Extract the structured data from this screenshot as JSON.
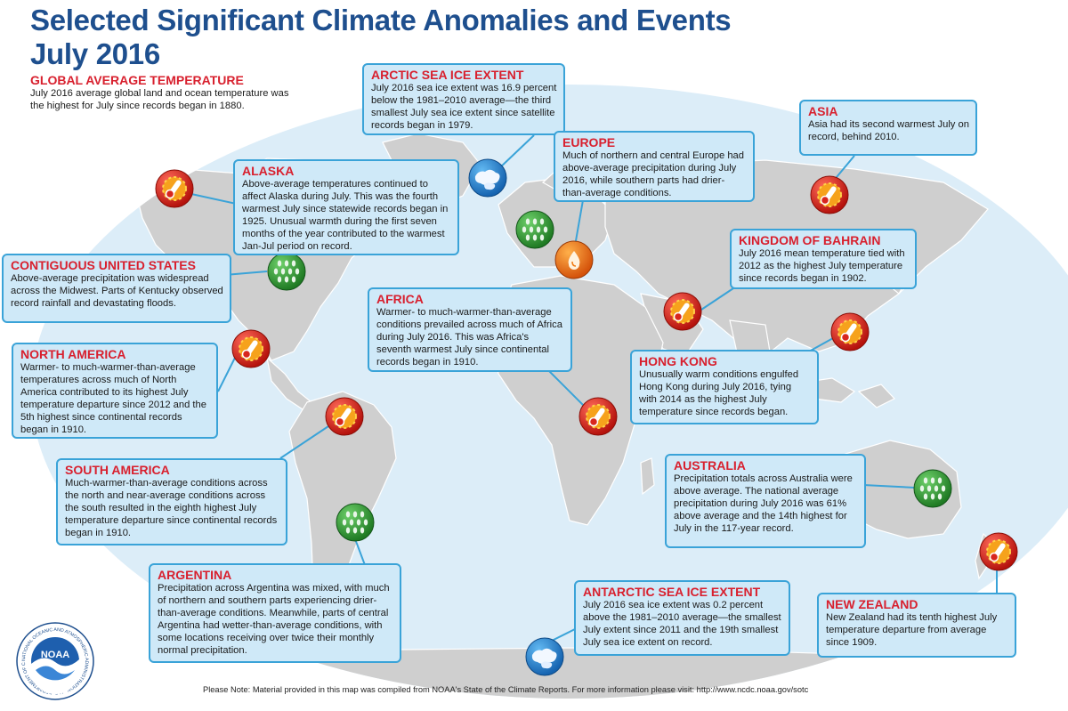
{
  "title": {
    "line1": "Selected Significant Climate Anomalies and Events",
    "line2": "July 2016"
  },
  "global": {
    "heading": "GLOBAL AVERAGE TEMPERATURE",
    "text": "July 2016 average global land and ocean temperature was the highest for July since records began in 1880."
  },
  "events": {
    "arctic": {
      "heading": "ARCTIC SEA ICE EXTENT",
      "text": "July 2016 sea ice extent was 16.9 percent below the 1981–2010 average—the third smallest July sea ice extent since satellite records began in 1979.",
      "icon": "sea-ice-icon"
    },
    "asia": {
      "heading": "ASIA",
      "text": "Asia had its second warmest July on record, behind 2010.",
      "icon": "warm-temperature-icon"
    },
    "alaska": {
      "heading": "ALASKA",
      "text": "Above-average temperatures continued to affect Alaska during July. This was the fourth warmest July since statewide records began in 1925. Unusual warmth during the first seven months of the year contributed to the warmest Jan-Jul period on record.",
      "icon": "warm-temperature-icon"
    },
    "europe": {
      "heading": "EUROPE",
      "text": "Much of northern and central Europe had above-average precipitation during July 2016, while southern parts had drier-than-average conditions.",
      "icon": "precipitation-icon"
    },
    "bahrain": {
      "heading": "KINGDOM OF BAHRAIN",
      "text": "July 2016 mean temperature tied with 2012 as the highest July temperature since records began in 1902.",
      "icon": "warm-temperature-icon"
    },
    "contiguous_us": {
      "heading": "CONTIGUOUS UNITED STATES",
      "text": "Above-average precipitation was widespread across the Midwest. Parts of Kentucky observed record rainfall and devastating floods.",
      "icon": "precipitation-icon"
    },
    "africa": {
      "heading": "AFRICA",
      "text": "Warmer- to much-warmer-than-average conditions prevailed across much of Africa during July 2016. This was Africa's seventh warmest July since continental records began in 1910.",
      "icon": "warm-temperature-icon"
    },
    "north_america": {
      "heading": "NORTH AMERICA",
      "text": "Warmer- to much-warmer-than-average temperatures across much of North America contributed to its highest July temperature departure since 2012 and the 5th highest since continental records began in 1910.",
      "icon": "warm-temperature-icon"
    },
    "hong_kong": {
      "heading": "HONG KONG",
      "text": "Unusually warm conditions engulfed Hong Kong during July 2016, tying with 2014 as the highest July temperature since records began.",
      "icon": "warm-temperature-icon"
    },
    "south_america": {
      "heading": "SOUTH AMERICA",
      "text": "Much-warmer-than-average conditions across the north and near-average conditions across the south resulted in the eighth highest July temperature departure since continental records began in 1910.",
      "icon": "warm-temperature-icon"
    },
    "australia": {
      "heading": "AUSTRALIA",
      "text": "Precipitation totals across Australia were above average. The national average precipitation during July 2016 was 61% above average and the 14th highest for July in the 117-year record.",
      "icon": "precipitation-icon"
    },
    "argentina": {
      "heading": "ARGENTINA",
      "text": "Precipitation across Argentina was mixed, with much of northern and southern parts experiencing drier-than-average conditions. Meanwhile, parts of central Argentina had wetter-than-average conditions, with some locations receiving over twice their monthly normal precipitation.",
      "icon": "precipitation-icon"
    },
    "antarctic": {
      "heading": "ANTARCTIC SEA ICE EXTENT",
      "text": "July 2016 sea ice extent was 0.2 percent above the 1981–2010 average—the smallest July extent since 2011 and the 19th smallest July sea ice extent on record.",
      "icon": "sea-ice-icon"
    },
    "new_zealand": {
      "heading": "NEW ZEALAND",
      "text": "New Zealand had its tenth highest July temperature departure from average since 1909.",
      "icon": "warm-temperature-icon"
    }
  },
  "extra_icons": {
    "europe_south": "dry-conditions-icon"
  },
  "logo": {
    "name": "NOAA",
    "ring_text": "NATIONAL OCEANIC AND ATMOSPHERIC ADMINISTRATION · U.S. DEPARTMENT OF COMMERCE"
  },
  "footer_note": "Please Note: Material provided in this map was compiled from NOAA's State of the Climate Reports. For more information please visit: http://www.ncdc.noaa.gov/sotc",
  "colors": {
    "ocean": "#dcedf8",
    "land": "#cfcfcf",
    "box_fill": "#cfe9f8",
    "box_border": "#3aa3d8",
    "heading_red": "#d8202e",
    "title_blue": "#1e4f8e",
    "warm_icon": "#d8261e",
    "precip_icon": "#3a9a3a",
    "ice_icon": "#2b8fd6",
    "dry_icon": "#f07a12"
  }
}
